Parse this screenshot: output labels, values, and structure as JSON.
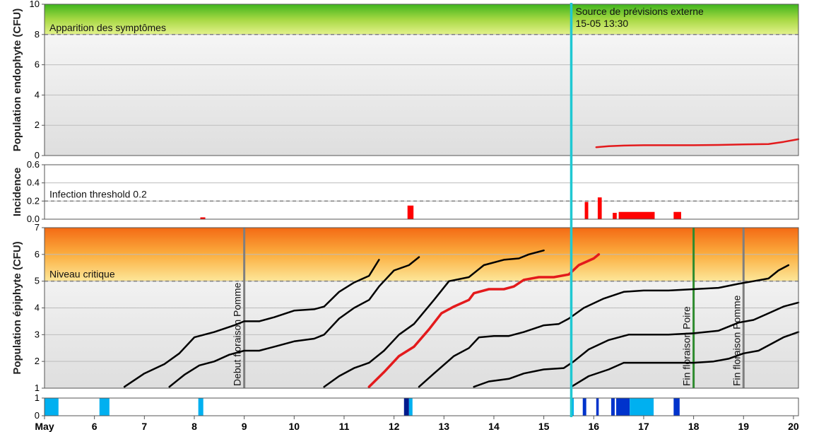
{
  "chart_data": [
    {
      "type": "line",
      "ylabel": "Population endophyte (CFU)",
      "ylim": [
        0,
        10
      ],
      "yticks": [
        "0",
        "2",
        "4",
        "6",
        "8",
        "10"
      ],
      "threshold": {
        "value": 8,
        "label": "Apparition des symptômes"
      },
      "forecast_line": {
        "x": 15.55,
        "label1": "Source de prévisions externe",
        "label2": "15-05 13:30"
      },
      "series": [
        {
          "color": "#e31a1c",
          "points": [
            [
              16.05,
              0.55
            ],
            [
              16.3,
              0.62
            ],
            [
              16.6,
              0.66
            ],
            [
              17.0,
              0.68
            ],
            [
              17.5,
              0.68
            ],
            [
              18.0,
              0.68
            ],
            [
              18.5,
              0.7
            ],
            [
              19.0,
              0.74
            ],
            [
              19.5,
              0.76
            ],
            [
              19.8,
              0.9
            ],
            [
              20.05,
              1.05
            ],
            [
              20.1,
              1.08
            ]
          ]
        }
      ]
    },
    {
      "type": "bar",
      "ylabel": "Incidence",
      "ylim": [
        0,
        0.6
      ],
      "yticks": [
        "0.0",
        "0.2",
        "0.4",
        "0.6"
      ],
      "threshold": {
        "value": 0.2,
        "label": "Infection threshold  0.2"
      },
      "bars": [
        {
          "x": 8.12,
          "w": 0.1,
          "value": 0.02
        },
        {
          "x": 12.27,
          "w": 0.12,
          "value": 0.15
        },
        {
          "x": 15.82,
          "w": 0.07,
          "value": 0.19
        },
        {
          "x": 16.08,
          "w": 0.08,
          "value": 0.24
        },
        {
          "x": 16.38,
          "w": 0.08,
          "value": 0.07
        },
        {
          "x": 16.5,
          "w": 0.72,
          "value": 0.08
        },
        {
          "x": 17.6,
          "w": 0.15,
          "value": 0.08
        }
      ]
    },
    {
      "type": "line",
      "ylabel": "Population épiphyte (CFU)",
      "ylim": [
        1,
        7
      ],
      "yticks": [
        "1",
        "2",
        "3",
        "4",
        "5",
        "6",
        "7"
      ],
      "threshold": {
        "value": 5,
        "label": "Niveau critique"
      },
      "events": [
        {
          "x": 9.0,
          "color": "#7f7f7f",
          "label": "Debut floraison Pomme"
        },
        {
          "x": 18.0,
          "color": "#2e8b2e",
          "label": "Fin floraison Poire"
        },
        {
          "x": 19.0,
          "color": "#7f7f7f",
          "label": "Fin floraison Pomme"
        }
      ],
      "series": [
        {
          "color": "#000000",
          "points": [
            [
              6.6,
              1.05
            ],
            [
              7.0,
              1.55
            ],
            [
              7.4,
              1.9
            ],
            [
              7.7,
              2.3
            ],
            [
              8.0,
              2.9
            ],
            [
              8.4,
              3.1
            ],
            [
              8.8,
              3.35
            ],
            [
              9.0,
              3.5
            ],
            [
              9.3,
              3.5
            ],
            [
              9.6,
              3.65
            ],
            [
              10.0,
              3.9
            ],
            [
              10.4,
              3.95
            ],
            [
              10.6,
              4.05
            ],
            [
              10.9,
              4.6
            ],
            [
              11.2,
              4.95
            ],
            [
              11.5,
              5.2
            ],
            [
              11.7,
              5.8
            ]
          ]
        },
        {
          "color": "#000000",
          "points": [
            [
              7.5,
              1.05
            ],
            [
              7.8,
              1.5
            ],
            [
              8.1,
              1.85
            ],
            [
              8.4,
              2.0
            ],
            [
              8.7,
              2.25
            ],
            [
              9.0,
              2.4
            ],
            [
              9.3,
              2.4
            ],
            [
              9.6,
              2.55
            ],
            [
              10.0,
              2.75
            ],
            [
              10.4,
              2.85
            ],
            [
              10.6,
              3.0
            ],
            [
              10.9,
              3.6
            ],
            [
              11.2,
              4.0
            ],
            [
              11.5,
              4.3
            ],
            [
              11.7,
              4.8
            ],
            [
              12.0,
              5.4
            ],
            [
              12.3,
              5.6
            ],
            [
              12.5,
              5.9
            ]
          ]
        },
        {
          "color": "#000000",
          "points": [
            [
              10.6,
              1.05
            ],
            [
              10.9,
              1.45
            ],
            [
              11.2,
              1.75
            ],
            [
              11.5,
              1.95
            ],
            [
              11.8,
              2.4
            ],
            [
              12.1,
              3.0
            ],
            [
              12.4,
              3.4
            ],
            [
              12.8,
              4.3
            ],
            [
              13.1,
              5.0
            ],
            [
              13.5,
              5.15
            ],
            [
              13.8,
              5.6
            ],
            [
              14.2,
              5.8
            ],
            [
              14.5,
              5.85
            ],
            [
              14.7,
              6.0
            ],
            [
              15.0,
              6.15
            ]
          ]
        },
        {
          "color": "#e31a1c",
          "width": 3.5,
          "points": [
            [
              11.5,
              1.05
            ],
            [
              11.8,
              1.6
            ],
            [
              12.1,
              2.2
            ],
            [
              12.4,
              2.55
            ],
            [
              12.7,
              3.2
            ],
            [
              12.95,
              3.8
            ],
            [
              13.2,
              4.05
            ],
            [
              13.5,
              4.3
            ],
            [
              13.6,
              4.55
            ],
            [
              13.9,
              4.7
            ],
            [
              14.2,
              4.7
            ],
            [
              14.4,
              4.8
            ],
            [
              14.6,
              5.05
            ],
            [
              14.9,
              5.15
            ],
            [
              15.2,
              5.15
            ],
            [
              15.5,
              5.25
            ],
            [
              15.7,
              5.6
            ],
            [
              16.0,
              5.85
            ],
            [
              16.1,
              6.0
            ]
          ]
        },
        {
          "color": "#000000",
          "points": [
            [
              12.5,
              1.05
            ],
            [
              12.8,
              1.55
            ],
            [
              13.2,
              2.2
            ],
            [
              13.5,
              2.5
            ],
            [
              13.7,
              2.9
            ],
            [
              14.0,
              2.95
            ],
            [
              14.3,
              2.95
            ],
            [
              14.6,
              3.1
            ],
            [
              15.0,
              3.35
            ],
            [
              15.3,
              3.4
            ],
            [
              15.5,
              3.6
            ],
            [
              15.8,
              4.0
            ],
            [
              16.2,
              4.35
            ],
            [
              16.6,
              4.6
            ],
            [
              17.0,
              4.65
            ],
            [
              17.5,
              4.65
            ],
            [
              18.0,
              4.7
            ],
            [
              18.5,
              4.75
            ],
            [
              18.9,
              4.9
            ],
            [
              19.2,
              5.0
            ],
            [
              19.5,
              5.1
            ],
            [
              19.7,
              5.4
            ],
            [
              19.9,
              5.6
            ]
          ]
        },
        {
          "color": "#000000",
          "points": [
            [
              13.6,
              1.05
            ],
            [
              13.9,
              1.25
            ],
            [
              14.3,
              1.35
            ],
            [
              14.6,
              1.55
            ],
            [
              15.0,
              1.7
            ],
            [
              15.4,
              1.75
            ],
            [
              15.6,
              2.0
            ],
            [
              15.9,
              2.45
            ],
            [
              16.3,
              2.8
            ],
            [
              16.7,
              3.0
            ],
            [
              17.0,
              3.0
            ],
            [
              17.5,
              3.0
            ],
            [
              18.0,
              3.05
            ],
            [
              18.5,
              3.15
            ],
            [
              18.9,
              3.45
            ],
            [
              19.2,
              3.55
            ],
            [
              19.5,
              3.8
            ],
            [
              19.8,
              4.05
            ],
            [
              20.1,
              4.2
            ]
          ]
        },
        {
          "color": "#000000",
          "points": [
            [
              15.55,
              1.05
            ],
            [
              15.9,
              1.45
            ],
            [
              16.3,
              1.7
            ],
            [
              16.6,
              1.95
            ],
            [
              17.0,
              1.95
            ],
            [
              17.5,
              1.95
            ],
            [
              18.0,
              1.95
            ],
            [
              18.4,
              2.0
            ],
            [
              18.7,
              2.1
            ],
            [
              19.0,
              2.3
            ],
            [
              19.3,
              2.4
            ],
            [
              19.5,
              2.6
            ],
            [
              19.8,
              2.9
            ],
            [
              20.1,
              3.1
            ]
          ]
        }
      ]
    },
    {
      "type": "bar",
      "ylim": [
        0,
        1
      ],
      "yticks": [
        "0",
        "1"
      ],
      "spans": [
        {
          "x0": 5.0,
          "x1": 5.28,
          "color": "#00b0f0"
        },
        {
          "x0": 6.1,
          "x1": 6.3,
          "color": "#00b0f0"
        },
        {
          "x0": 8.08,
          "x1": 8.18,
          "color": "#00b0f0"
        },
        {
          "x0": 12.2,
          "x1": 12.3,
          "color": "#001a8c"
        },
        {
          "x0": 12.3,
          "x1": 12.37,
          "color": "#00b0f0"
        },
        {
          "x0": 15.55,
          "x1": 15.6,
          "color": "#00b0f0"
        },
        {
          "x0": 15.78,
          "x1": 15.85,
          "color": "#0033cc"
        },
        {
          "x0": 16.05,
          "x1": 16.1,
          "color": "#0033cc"
        },
        {
          "x0": 16.35,
          "x1": 16.42,
          "color": "#0033cc"
        },
        {
          "x0": 16.45,
          "x1": 16.72,
          "color": "#0033cc"
        },
        {
          "x0": 16.72,
          "x1": 17.2,
          "color": "#00b0f0"
        },
        {
          "x0": 17.6,
          "x1": 17.72,
          "color": "#0033cc"
        }
      ],
      "x_ticks": [
        "May",
        "6",
        "7",
        "8",
        "9",
        "10",
        "11",
        "12",
        "13",
        "14",
        "15",
        "16",
        "17",
        "18",
        "19",
        "20"
      ],
      "xlim": [
        5,
        20.1
      ]
    }
  ],
  "colors": {
    "forecast": "#1fc8d2",
    "threshold": "#808080",
    "panel_bg_top": "#f9f9f9",
    "panel_bg_bottom": "#e1e1e1"
  }
}
